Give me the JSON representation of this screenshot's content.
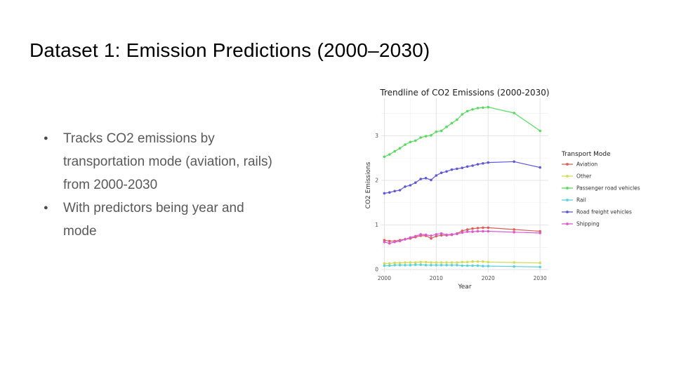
{
  "slide": {
    "title": "Dataset 1: Emission Predictions (2000–2030)",
    "bullets": [
      "Tracks CO2 emissions by\ntransportation mode (aviation, rails)\nfrom 2000-2030",
      "With predictors being year and\nmode"
    ]
  },
  "chart_data": {
    "type": "line",
    "title": "Trendline of CO2 Emissions (2000-2030)",
    "xlabel": "Year",
    "ylabel": "CO2 Emissions",
    "legend_title": "Transport Mode",
    "legend_position": "right",
    "grid": "major+minor",
    "x": [
      2000,
      2001,
      2002,
      2003,
      2004,
      2005,
      2006,
      2007,
      2008,
      2009,
      2010,
      2011,
      2012,
      2013,
      2014,
      2015,
      2016,
      2017,
      2018,
      2019,
      2020,
      2025,
      2030
    ],
    "xticks": [
      2000,
      2010,
      2020,
      2030
    ],
    "yticks": [
      0,
      1,
      2,
      3
    ],
    "xlim": [
      1999.4,
      2031.6
    ],
    "ylim": [
      -0.06,
      3.84
    ],
    "series": [
      {
        "name": "Aviation",
        "color": "#db5f57",
        "values": [
          0.66,
          0.64,
          0.64,
          0.66,
          0.68,
          0.7,
          0.73,
          0.76,
          0.76,
          0.7,
          0.75,
          0.77,
          0.77,
          0.78,
          0.81,
          0.87,
          0.9,
          0.92,
          0.93,
          0.94,
          0.94,
          0.9,
          0.86
        ]
      },
      {
        "name": "Other",
        "color": "#d3db57",
        "values": [
          0.14,
          0.14,
          0.15,
          0.15,
          0.16,
          0.16,
          0.16,
          0.17,
          0.17,
          0.16,
          0.16,
          0.16,
          0.16,
          0.16,
          0.16,
          0.17,
          0.17,
          0.18,
          0.18,
          0.18,
          0.17,
          0.16,
          0.15
        ]
      },
      {
        "name": "Passenger road vehicles",
        "color": "#57db5f",
        "values": [
          2.53,
          2.58,
          2.65,
          2.72,
          2.8,
          2.86,
          2.89,
          2.96,
          2.99,
          3.01,
          3.09,
          3.11,
          3.2,
          3.28,
          3.36,
          3.48,
          3.55,
          3.59,
          3.62,
          3.63,
          3.64,
          3.51,
          3.11
        ]
      },
      {
        "name": "Rail",
        "color": "#57d3db",
        "values": [
          0.09,
          0.09,
          0.1,
          0.1,
          0.1,
          0.1,
          0.11,
          0.11,
          0.1,
          0.1,
          0.1,
          0.1,
          0.1,
          0.1,
          0.1,
          0.09,
          0.09,
          0.09,
          0.09,
          0.08,
          0.08,
          0.07,
          0.06
        ]
      },
      {
        "name": "Road freight vehicles",
        "color": "#5f57db",
        "values": [
          1.71,
          1.73,
          1.76,
          1.78,
          1.86,
          1.89,
          1.95,
          2.03,
          2.05,
          2.01,
          2.11,
          2.17,
          2.2,
          2.24,
          2.26,
          2.28,
          2.31,
          2.33,
          2.36,
          2.38,
          2.4,
          2.42,
          2.29
        ]
      },
      {
        "name": "Shipping",
        "color": "#db57d3",
        "values": [
          0.62,
          0.59,
          0.62,
          0.64,
          0.68,
          0.72,
          0.75,
          0.79,
          0.78,
          0.76,
          0.79,
          0.81,
          0.78,
          0.79,
          0.8,
          0.83,
          0.85,
          0.85,
          0.86,
          0.86,
          0.86,
          0.84,
          0.82
        ]
      }
    ],
    "colors": {
      "grid_major": "#e3e3e3",
      "grid_minor": "#f1f1f1",
      "title_text": "#1c1c1c",
      "axis_text": "#4d4d4d",
      "label_text": "#2b2b2b",
      "legend_text": "#333333"
    }
  }
}
